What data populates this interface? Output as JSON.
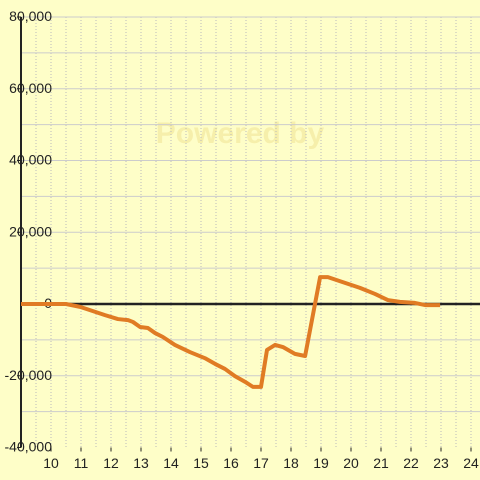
{
  "chart_data": {
    "type": "line",
    "watermark": "Powered by",
    "x": [
      9,
      10.5,
      10.97,
      11.3,
      11.8,
      12.23,
      12.57,
      12.73,
      12.97,
      13.23,
      13.47,
      13.73,
      14.13,
      14.63,
      15.13,
      15.47,
      15.8,
      16.13,
      16.47,
      16.73,
      17.0,
      17.2,
      17.47,
      17.73,
      18.13,
      18.47,
      18.97,
      19.23,
      19.8,
      20.3,
      20.8,
      21.23,
      21.63,
      22.13,
      22.47,
      22.97
    ],
    "series": [
      {
        "color": "#e07b24",
        "values": [
          0,
          0,
          -800,
          -1700,
          -3100,
          -4200,
          -4500,
          -5000,
          -6400,
          -6700,
          -8100,
          -9200,
          -11400,
          -13400,
          -15100,
          -16700,
          -18100,
          -20100,
          -21700,
          -23100,
          -23100,
          -12800,
          -11400,
          -12000,
          -13900,
          -14500,
          7500,
          7500,
          5900,
          4500,
          2800,
          1100,
          600,
          300,
          -300,
          -300
        ]
      }
    ],
    "xlim": [
      9,
      24.3
    ],
    "xticks": [
      10,
      11,
      12,
      13,
      14,
      15,
      16,
      17,
      18,
      19,
      20,
      21,
      22,
      23,
      24
    ],
    "xgrid": [
      9.5,
      10,
      10.5,
      11,
      11.5,
      12,
      12.5,
      13,
      13.5,
      14,
      14.5,
      15,
      15.5,
      16,
      16.5,
      17,
      17.5,
      18,
      18.5,
      19,
      19.5,
      20,
      20.5,
      21,
      21.5,
      22,
      22.5,
      23,
      23.5,
      24
    ],
    "ylim": [
      -40000,
      80000
    ],
    "yticks": [
      {
        "value": -40000,
        "label": "-40,000"
      },
      {
        "value": -20000,
        "label": "-20,000"
      },
      0,
      {
        "value": 20000,
        "label": "20,000"
      },
      {
        "value": 40000,
        "label": "40,000"
      },
      {
        "value": 60000,
        "label": "60,000"
      },
      {
        "value": 80000,
        "label": "80,000"
      }
    ],
    "ygrid": [
      -30000,
      -20000,
      -10000,
      10000,
      20000,
      30000,
      40000,
      50000,
      60000,
      70000,
      80000
    ],
    "grid": true
  }
}
